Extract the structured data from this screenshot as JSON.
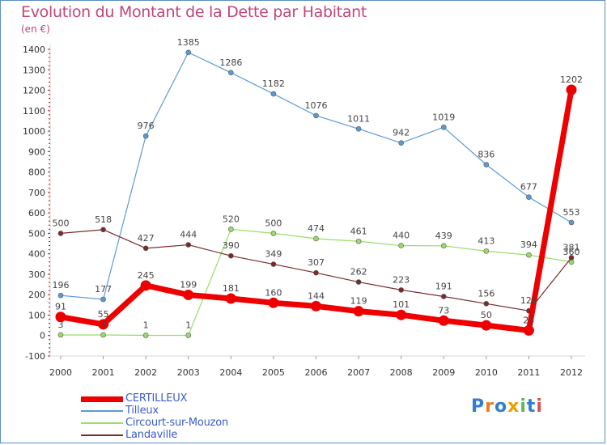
{
  "chart_data": {
    "type": "line",
    "title": "Evolution du Montant de la Dette par Habitant",
    "subtitle": "(en €)",
    "categories": [
      "2000",
      "2001",
      "2002",
      "2003",
      "2004",
      "2005",
      "2006",
      "2007",
      "2008",
      "2009",
      "2010",
      "2011",
      "2012"
    ],
    "ylim": [
      -100,
      1400
    ],
    "yticks": [
      -100,
      0,
      100,
      200,
      300,
      400,
      500,
      600,
      700,
      800,
      900,
      1000,
      1100,
      1200,
      1300,
      1400
    ],
    "grid": false,
    "legend_position": "bottom-left",
    "series": [
      {
        "name": "CERTILLEUX",
        "color": "#ee0000",
        "values": [
          91,
          55,
          245,
          199,
          181,
          160,
          144,
          119,
          101,
          73,
          50,
          25,
          1202
        ]
      },
      {
        "name": "Tilleux",
        "color": "#5b9bd5",
        "values": [
          196,
          177,
          976,
          1385,
          1286,
          1182,
          1076,
          1011,
          942,
          1019,
          836,
          677,
          553
        ]
      },
      {
        "name": "Circourt-sur-Mouzon",
        "color": "#99dd66",
        "values": [
          3,
          3,
          1,
          1,
          520,
          500,
          474,
          461,
          440,
          439,
          413,
          394,
          360
        ]
      },
      {
        "name": "Landaville",
        "color": "#7a2a2a",
        "values": [
          500,
          518,
          427,
          444,
          390,
          349,
          307,
          262,
          223,
          191,
          156,
          121,
          381
        ]
      }
    ]
  },
  "logo": {
    "text": "Proxiti",
    "letters": [
      "P",
      "r",
      "o",
      "x",
      "i",
      "t",
      "i"
    ],
    "colors": [
      "#2f7fd0",
      "#e67e22",
      "#2f7fd0",
      "#e8a000",
      "#5cb85c",
      "#2f7fd0",
      "#d9534f"
    ]
  }
}
